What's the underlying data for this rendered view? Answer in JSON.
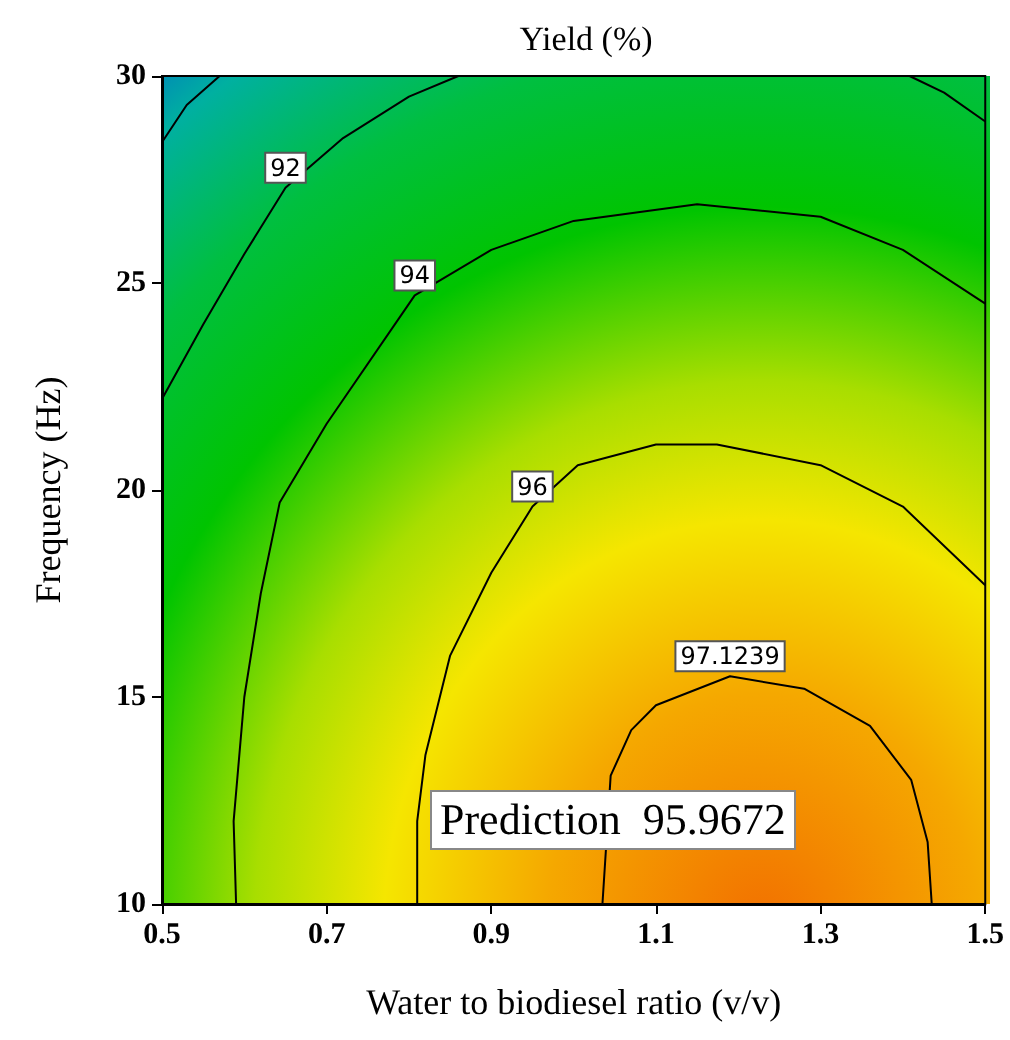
{
  "chart_data": {
    "type": "line",
    "title": "Yield (%)",
    "xlabel": "Water to biodiesel ratio (v/v)",
    "ylabel": "Frequency (Hz)",
    "xlim": [
      0.5,
      1.5
    ],
    "xticks": [
      0.5,
      0.7,
      0.9,
      1.1,
      1.3,
      1.5
    ],
    "ylim": [
      10,
      30
    ],
    "yticks": [
      10,
      15,
      20,
      25,
      30
    ],
    "grid": false,
    "legend": false,
    "marker": "none",
    "line_style": "solid",
    "series": [
      {
        "color": "#000000",
        "x": [
          0.5,
          0.53,
          0.57
        ],
        "values": [
          28.4,
          29.3,
          30
        ]
      },
      {
        "name": "92",
        "color": "#000000",
        "x": [
          0.5,
          0.55,
          0.6,
          0.65,
          0.72,
          0.8,
          0.86
        ],
        "values": [
          22.2,
          24,
          25.7,
          27.3,
          28.5,
          29.5,
          30
        ]
      },
      {
        "color": "#000000",
        "x": [
          1.408,
          1.45,
          1.5
        ],
        "values": [
          30,
          29.6,
          28.9
        ]
      },
      {
        "name": "94",
        "color": "#000000",
        "x": [
          0.59,
          0.587,
          0.6,
          0.62,
          0.643,
          0.7,
          0.807,
          0.9,
          1.0,
          1.15,
          1.3,
          1.4,
          1.5
        ],
        "values": [
          10,
          12,
          15,
          17.5,
          19.7,
          21.6,
          24.7,
          25.8,
          26.5,
          26.9,
          26.6,
          25.8,
          24.5
        ]
      },
      {
        "name": "96",
        "color": "#000000",
        "x": [
          0.81,
          0.81,
          0.82,
          0.85,
          0.9,
          0.95,
          1.005,
          1.1,
          1.174,
          1.3,
          1.4,
          1.5
        ],
        "values": [
          10,
          12,
          13.6,
          16,
          18,
          19.6,
          20.6,
          21.1,
          21.1,
          20.6,
          19.6,
          17.7
        ]
      },
      {
        "name": "97.1239",
        "color": "#000000",
        "x": [
          1.035,
          1.045,
          1.07,
          1.1,
          1.19,
          1.28,
          1.36,
          1.41,
          1.43,
          1.435
        ],
        "values": [
          10,
          13.1,
          14.2,
          14.8,
          15.5,
          15.2,
          14.3,
          13,
          11.5,
          10
        ]
      }
    ],
    "annotations": [
      "Prediction  95.9672"
    ]
  }
}
